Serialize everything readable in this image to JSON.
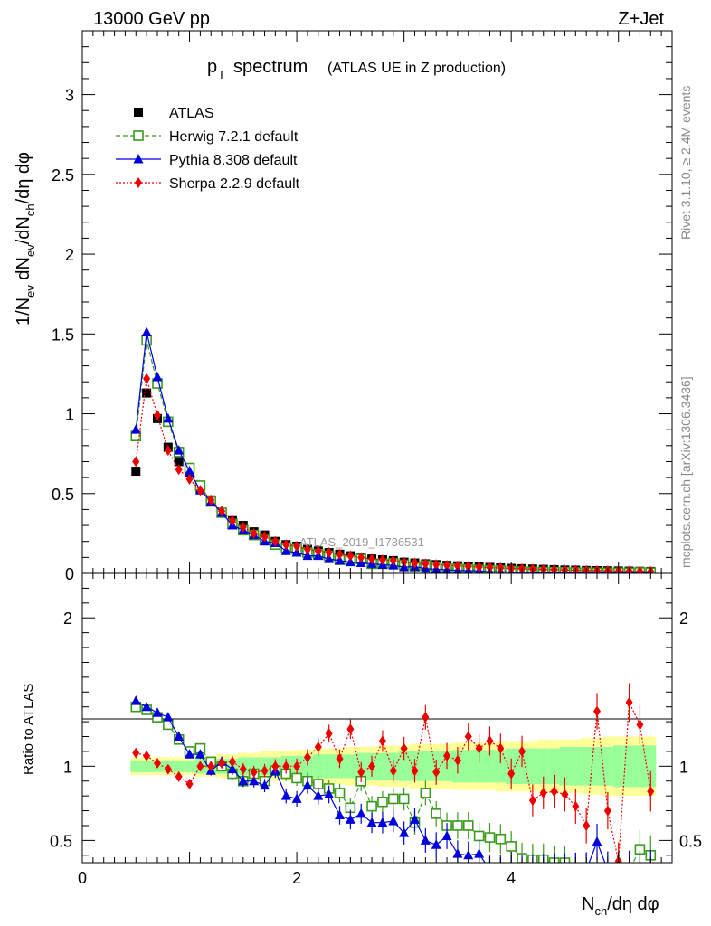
{
  "header": {
    "left": "13000 GeV pp",
    "right": "Z+Jet",
    "analysis_id": "ATLAS_2019_I1736531",
    "side_top": "Rivet 3.1.10, ≥ 2.4M events",
    "side_bottom": "mcplots.cern.ch [arXiv:1306.3436]"
  },
  "colors": {
    "atlas": "#000000",
    "herwig": "#3a9a1c",
    "pythia": "#0000dd",
    "sherpa": "#ee0000",
    "band_outer": "#ffff99",
    "band_inner": "#99ff99"
  },
  "chart_data": [
    {
      "type": "scatter",
      "title": "p_T spectrum (ATLAS UE in Z production)",
      "title_main": "p",
      "title_sub": "T",
      "title_word": "spectrum",
      "title_paren": "(ATLAS UE in Z production)",
      "ylabel": "1/N_ev dN_ev/dN_ch/dη dφ",
      "ylim": [
        0,
        3.4
      ],
      "yticks": [
        "0",
        "0.5",
        "1",
        "1.5",
        "2",
        "2.5",
        "3"
      ],
      "legend_placement": "top-left",
      "x": [
        0.5,
        0.6,
        0.7,
        0.8,
        0.9,
        1.0,
        1.1,
        1.2,
        1.3,
        1.4,
        1.5,
        1.6,
        1.7,
        1.8,
        1.9,
        2.0,
        2.1,
        2.2,
        2.3,
        2.4,
        2.5,
        2.6,
        2.7,
        2.8,
        2.9,
        3.0,
        3.1,
        3.2,
        3.3,
        3.4,
        3.5,
        3.6,
        3.7,
        3.8,
        3.9,
        4.0,
        4.1,
        4.2,
        4.3,
        4.4,
        4.5,
        4.6,
        4.7,
        4.8,
        4.9,
        5.0,
        5.1,
        5.2,
        5.3
      ],
      "series": [
        {
          "name": "ATLAS",
          "values": [
            0.64,
            1.13,
            0.97,
            0.79,
            0.7,
            0.63,
            0.53,
            0.46,
            0.38,
            0.33,
            0.3,
            0.26,
            0.24,
            0.2,
            0.18,
            0.17,
            0.15,
            0.14,
            0.13,
            0.12,
            0.11,
            0.1,
            0.09,
            0.085,
            0.08,
            0.07,
            0.065,
            0.06,
            0.055,
            0.05,
            0.047,
            0.043,
            0.04,
            0.037,
            0.034,
            0.031,
            0.029,
            0.027,
            0.025,
            0.023,
            0.021,
            0.02,
            0.018,
            0.017,
            0.016,
            0.015,
            0.014,
            0.013,
            0.012
          ]
        },
        {
          "name": "Herwig 7.2.1 default",
          "values": [
            0.86,
            1.46,
            1.19,
            0.95,
            0.76,
            0.66,
            0.55,
            0.45,
            0.38,
            0.31,
            0.27,
            0.24,
            0.21,
            0.18,
            0.16,
            0.15,
            0.13,
            0.12,
            0.11,
            0.085,
            0.08,
            0.09,
            0.06,
            0.06,
            0.063,
            0.054,
            0.04,
            0.049,
            0.038,
            0.03,
            0.028,
            0.025,
            0.021,
            0.019,
            0.017,
            0.014,
            0.011,
            0.01,
            0.009,
            0.008,
            0.007,
            0.006,
            0.005,
            0.004,
            0.004,
            0.004,
            0.004,
            0.0062,
            0.0048
          ]
        },
        {
          "name": "Pythia 8.308 default",
          "values": [
            0.9,
            1.51,
            1.23,
            0.97,
            0.77,
            0.64,
            0.52,
            0.45,
            0.38,
            0.3,
            0.27,
            0.24,
            0.2,
            0.19,
            0.14,
            0.13,
            0.11,
            0.11,
            0.09,
            0.08,
            0.07,
            0.065,
            0.06,
            0.054,
            0.05,
            0.039,
            0.042,
            0.03,
            0.026,
            0.023,
            0.018,
            0.017,
            0.016,
            0.01,
            0.01,
            0.008,
            0.007,
            0.006,
            0.005,
            0.004,
            0.003,
            0.003,
            0.003,
            0.003,
            0.003,
            0.003,
            0.003,
            0.003,
            0.003
          ]
        },
        {
          "name": "Sherpa 2.2.9 default",
          "values": [
            0.7,
            1.22,
            0.99,
            0.77,
            0.65,
            0.59,
            0.52,
            0.46,
            0.39,
            0.33,
            0.29,
            0.25,
            0.23,
            0.2,
            0.18,
            0.17,
            0.15,
            0.14,
            0.13,
            0.12,
            0.11,
            0.1,
            0.09,
            0.085,
            0.08,
            0.07,
            0.065,
            0.06,
            0.055,
            0.05,
            0.047,
            0.043,
            0.04,
            0.037,
            0.034,
            0.031,
            0.029,
            0.027,
            0.025,
            0.023,
            0.021,
            0.02,
            0.018,
            0.017,
            0.016,
            0.015,
            0.014,
            0.013,
            0.012
          ]
        }
      ]
    },
    {
      "type": "scatter",
      "ylabel": "Ratio to ATLAS",
      "xlabel": "N_ch/dη dφ",
      "xlim": [
        0,
        5.5
      ],
      "ylim": [
        0.35,
        2.3
      ],
      "xticks": [
        "0",
        "2",
        "4"
      ],
      "yticks": [
        "0.5",
        "1",
        "2"
      ],
      "x": [
        0.5,
        0.6,
        0.7,
        0.8,
        0.9,
        1.0,
        1.1,
        1.2,
        1.3,
        1.4,
        1.5,
        1.6,
        1.7,
        1.8,
        1.9,
        2.0,
        2.1,
        2.2,
        2.3,
        2.4,
        2.5,
        2.6,
        2.7,
        2.8,
        2.9,
        3.0,
        3.1,
        3.2,
        3.3,
        3.4,
        3.5,
        3.6,
        3.7,
        3.8,
        3.9,
        4.0,
        4.1,
        4.2,
        4.3,
        4.4,
        4.5,
        4.6,
        4.7,
        4.8,
        4.9,
        5.0,
        5.1,
        5.2,
        5.3
      ],
      "band_outer": [
        0.06,
        0.06,
        0.06,
        0.06,
        0.06,
        0.06,
        0.07,
        0.07,
        0.08,
        0.08,
        0.09,
        0.09,
        0.1,
        0.1,
        0.1,
        0.11,
        0.11,
        0.12,
        0.12,
        0.12,
        0.13,
        0.13,
        0.13,
        0.14,
        0.14,
        0.14,
        0.15,
        0.15,
        0.15,
        0.15,
        0.16,
        0.16,
        0.16,
        0.16,
        0.17,
        0.17,
        0.17,
        0.17,
        0.18,
        0.18,
        0.18,
        0.18,
        0.19,
        0.19,
        0.2,
        0.2,
        0.2,
        0.2,
        0.2
      ],
      "band_inner": [
        0.04,
        0.04,
        0.04,
        0.04,
        0.04,
        0.04,
        0.05,
        0.05,
        0.05,
        0.05,
        0.06,
        0.06,
        0.06,
        0.06,
        0.07,
        0.07,
        0.07,
        0.08,
        0.08,
        0.08,
        0.08,
        0.09,
        0.09,
        0.09,
        0.09,
        0.1,
        0.1,
        0.1,
        0.1,
        0.1,
        0.11,
        0.11,
        0.11,
        0.11,
        0.11,
        0.12,
        0.12,
        0.12,
        0.12,
        0.12,
        0.13,
        0.13,
        0.13,
        0.13,
        0.13,
        0.14,
        0.14,
        0.14,
        0.14
      ],
      "series": [
        {
          "name": "Herwig 7.2.1 default",
          "values": [
            1.4,
            1.38,
            1.33,
            1.28,
            1.18,
            1.1,
            1.12,
            1.03,
            1.0,
            0.95,
            0.9,
            0.95,
            0.9,
            0.97,
            0.95,
            0.92,
            0.9,
            0.88,
            0.85,
            0.82,
            0.72,
            0.9,
            0.73,
            0.76,
            0.78,
            0.78,
            0.62,
            0.82,
            0.68,
            0.6,
            0.6,
            0.6,
            0.53,
            0.52,
            0.51,
            0.46,
            0.38,
            0.37,
            0.37,
            0.35,
            0.35,
            0.3,
            0.3,
            0.3,
            0.3,
            0.3,
            0.3,
            0.44,
            0.4
          ]
        },
        {
          "name": "Pythia 8.308 default",
          "values": [
            1.44,
            1.4,
            1.36,
            1.33,
            1.2,
            1.08,
            1.08,
            0.97,
            1.03,
            0.98,
            0.9,
            0.9,
            0.87,
            0.97,
            0.8,
            0.78,
            0.87,
            0.8,
            0.81,
            0.67,
            0.64,
            0.68,
            0.62,
            0.62,
            0.63,
            0.55,
            0.64,
            0.5,
            0.47,
            0.53,
            0.41,
            0.4,
            0.41,
            0.3,
            0.3,
            0.3,
            0.3,
            0.3,
            0.3,
            0.3,
            0.3,
            0.3,
            0.3,
            0.49,
            0.3,
            0.3,
            0.3,
            0.3,
            0.3
          ]
        },
        {
          "name": "Sherpa 2.2.9 default",
          "values": [
            1.09,
            1.07,
            1.02,
            0.98,
            0.93,
            0.88,
            1.0,
            1.0,
            1.02,
            1.03,
            0.98,
            0.96,
            0.97,
            1.0,
            1.0,
            1.0,
            1.06,
            1.13,
            1.22,
            1.05,
            1.25,
            0.96,
            1.0,
            1.17,
            0.97,
            1.12,
            0.97,
            1.33,
            0.96,
            1.07,
            1.04,
            1.2,
            1.12,
            1.17,
            1.12,
            0.95,
            1.1,
            0.77,
            0.82,
            0.83,
            0.81,
            0.73,
            0.6,
            1.37,
            0.7,
            0.36,
            1.43,
            1.28,
            0.83
          ]
        }
      ]
    }
  ]
}
